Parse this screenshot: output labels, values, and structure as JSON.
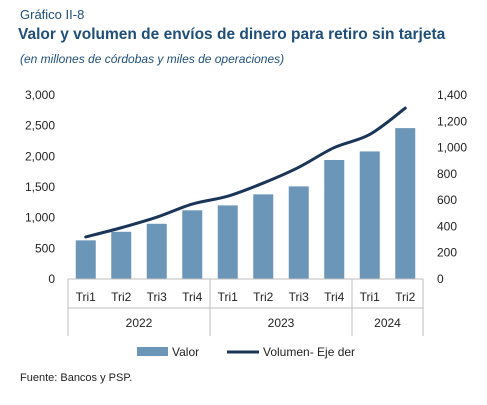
{
  "figure": {
    "label": "Gráfico II-8",
    "title": "Valor y volumen de envíos de dinero para retiro sin tarjeta",
    "subtitle": "(en millones de córdobas y miles de operaciones)",
    "source": "Fuente: Bancos y PSP."
  },
  "colors": {
    "bar": "#6b96b8",
    "line": "#1a3557",
    "axis_text": "#222222"
  },
  "chart_data": {
    "type": "bar",
    "categories": [
      "Tri1",
      "Tri2",
      "Tri3",
      "Tri4",
      "Tri1",
      "Tri2",
      "Tri3",
      "Tri4",
      "Tri1",
      "Tri2"
    ],
    "year_groups": [
      {
        "label": "2022",
        "count": 4
      },
      {
        "label": "2023",
        "count": 4
      },
      {
        "label": "2024",
        "count": 2
      }
    ],
    "series": [
      {
        "name": "Valor",
        "type": "bar",
        "axis": "left",
        "values": [
          630,
          770,
          900,
          1120,
          1200,
          1380,
          1510,
          1940,
          2080,
          2460
        ]
      },
      {
        "name": "Volumen- Eje der",
        "type": "line",
        "axis": "right",
        "values": [
          320,
          390,
          470,
          570,
          630,
          730,
          850,
          1000,
          1100,
          1300
        ]
      }
    ],
    "ylim_left": [
      0,
      3000
    ],
    "ylim_right": [
      0,
      1400
    ],
    "yticks_left": [
      "0",
      "500",
      "1,000",
      "1,500",
      "2,000",
      "2,500",
      "3,000"
    ],
    "yticks_right": [
      "0",
      "200",
      "400",
      "600",
      "800",
      "1,000",
      "1,200",
      "1,400"
    ],
    "grid": false,
    "legend_position": "bottom"
  }
}
